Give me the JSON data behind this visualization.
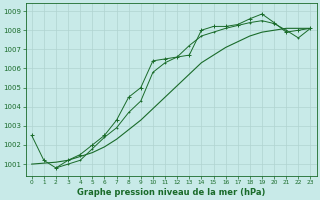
{
  "title": "Graphe pression niveau de la mer (hPa)",
  "background_color": "#c8eae8",
  "grid_color": "#b0d4d0",
  "line_color": "#1a6b2a",
  "xlim": [
    -0.5,
    23.5
  ],
  "ylim": [
    1000.4,
    1009.4
  ],
  "yticks": [
    1001,
    1002,
    1003,
    1004,
    1005,
    1006,
    1007,
    1008,
    1009
  ],
  "xticks": [
    0,
    1,
    2,
    3,
    4,
    5,
    6,
    7,
    8,
    9,
    10,
    11,
    12,
    13,
    14,
    15,
    16,
    17,
    18,
    19,
    20,
    21,
    22,
    23
  ],
  "line1_x": [
    0,
    1,
    2,
    3,
    4,
    5,
    6,
    7,
    8,
    9,
    10,
    11,
    12,
    13,
    14,
    15,
    16,
    17,
    18,
    19,
    20,
    21,
    22,
    23
  ],
  "line1_y": [
    1002.5,
    1001.2,
    1000.8,
    1001.2,
    1001.5,
    1002.0,
    1002.5,
    1003.3,
    1004.5,
    1005.0,
    1006.4,
    1006.5,
    1006.6,
    1006.7,
    1008.0,
    1008.2,
    1008.2,
    1008.3,
    1008.6,
    1008.85,
    1008.4,
    1007.9,
    1008.0,
    1008.1
  ],
  "line2_x": [
    2,
    3,
    4,
    5,
    6,
    7,
    8,
    9,
    10,
    11,
    12,
    13,
    14,
    15,
    16,
    17,
    18,
    19,
    20,
    21,
    22,
    23
  ],
  "line2_y": [
    1000.8,
    1001.0,
    1001.2,
    1001.8,
    1002.4,
    1002.9,
    1003.7,
    1004.3,
    1005.8,
    1006.3,
    1006.6,
    1007.2,
    1007.7,
    1007.9,
    1008.1,
    1008.25,
    1008.4,
    1008.5,
    1008.35,
    1008.0,
    1007.6,
    1008.1
  ],
  "line3_x": [
    0,
    1,
    2,
    3,
    4,
    5,
    6,
    7,
    8,
    9,
    10,
    11,
    12,
    13,
    14,
    15,
    16,
    17,
    18,
    19,
    20,
    21,
    22,
    23
  ],
  "line3_y": [
    1001.0,
    1001.05,
    1001.1,
    1001.2,
    1001.4,
    1001.6,
    1001.9,
    1002.3,
    1002.8,
    1003.3,
    1003.9,
    1004.5,
    1005.1,
    1005.7,
    1006.3,
    1006.7,
    1007.1,
    1007.4,
    1007.7,
    1007.9,
    1008.0,
    1008.1,
    1008.1,
    1008.1
  ],
  "ylabel_fontsize": 5,
  "xlabel_fontsize": 6,
  "tick_labelsize": 5
}
